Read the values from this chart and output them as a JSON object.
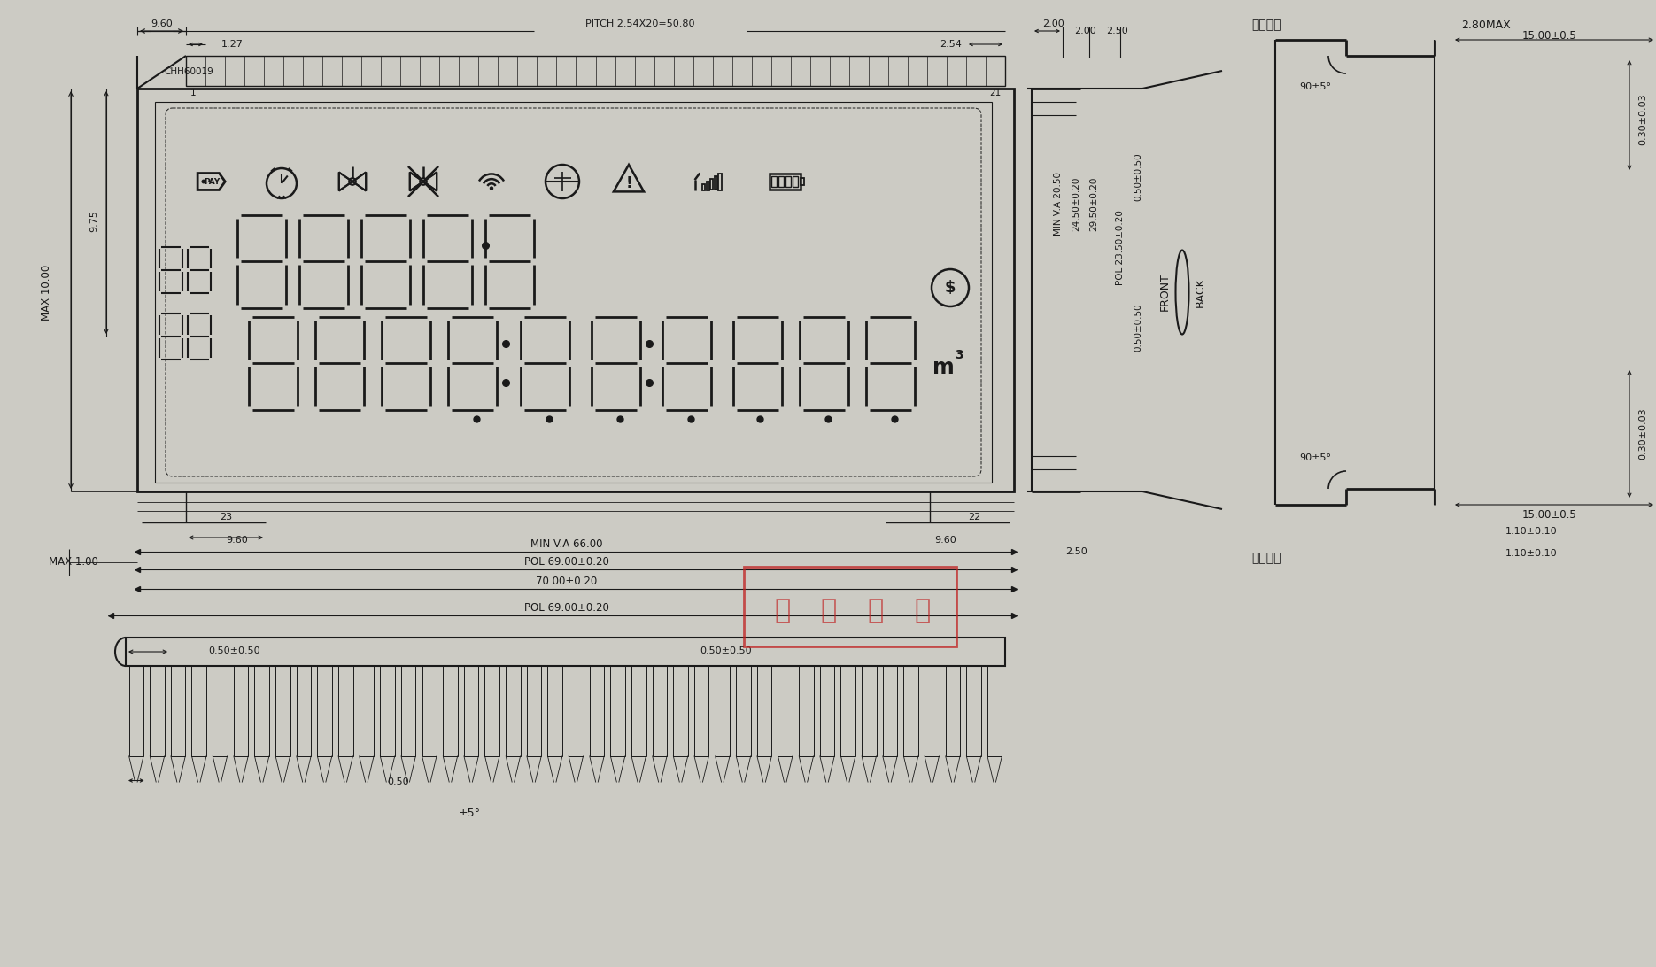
{
  "bg_color": "#cccbc4",
  "lc": "#1a1a1a",
  "annotations": {
    "pitch": "PITCH 2.54X20=50.80",
    "chh": "CHH60019",
    "pin1": "1",
    "pin21": "21",
    "pin22": "22",
    "pin23": "23",
    "min_va_top": "MIN V.A 20.50",
    "pol_top1": "24.50±0.20",
    "pol_top2": "29.50±0.20",
    "pol_top3": "POL 23.50±0.20",
    "pol_top4": "0.50±0.50",
    "pol_top5": "0.50±0.50",
    "front": "FRONT",
    "back": "BACK",
    "dim_960_top": "9.60",
    "dim_127": "1.27",
    "dim_254": "2.54",
    "dim_200": "2.00",
    "dim_200b": "2.00",
    "dim_250": "2.50",
    "dim_250b": "2.50",
    "dim_975": "9.75",
    "dim_1000": "MAX 10.00",
    "dim_100": "MAX 1.00",
    "dim_960_bot": "9.60",
    "dim_960_bot2": "9.60",
    "shuangmian_top": "双面磨边",
    "shuangmian_bot": "双面磨边",
    "min_va_bot": "MIN V.A 66.00",
    "pol_bot1": "POL 69.00±0.20",
    "pol_bot2": "70.00±0.20",
    "pol_bot3": "POL 69.00±0.20",
    "dim_050a": "0.50±0.50",
    "dim_050b": "0.50±0.50",
    "dim_050c": "0.50",
    "dim_pm5": "±5°",
    "dim_280max": "2.80MAX",
    "dim_1500a": "15.00±0.5",
    "dim_1500b": "15.00±0.5",
    "dim_110a": "1.10±0.10",
    "dim_110b": "1.10±0.10",
    "dim_030a": "0.30±0.03",
    "dim_030b": "0.30±0.03",
    "dim_90a": "90±5°",
    "dim_90b": "90±5°",
    "m3": "m"
  }
}
